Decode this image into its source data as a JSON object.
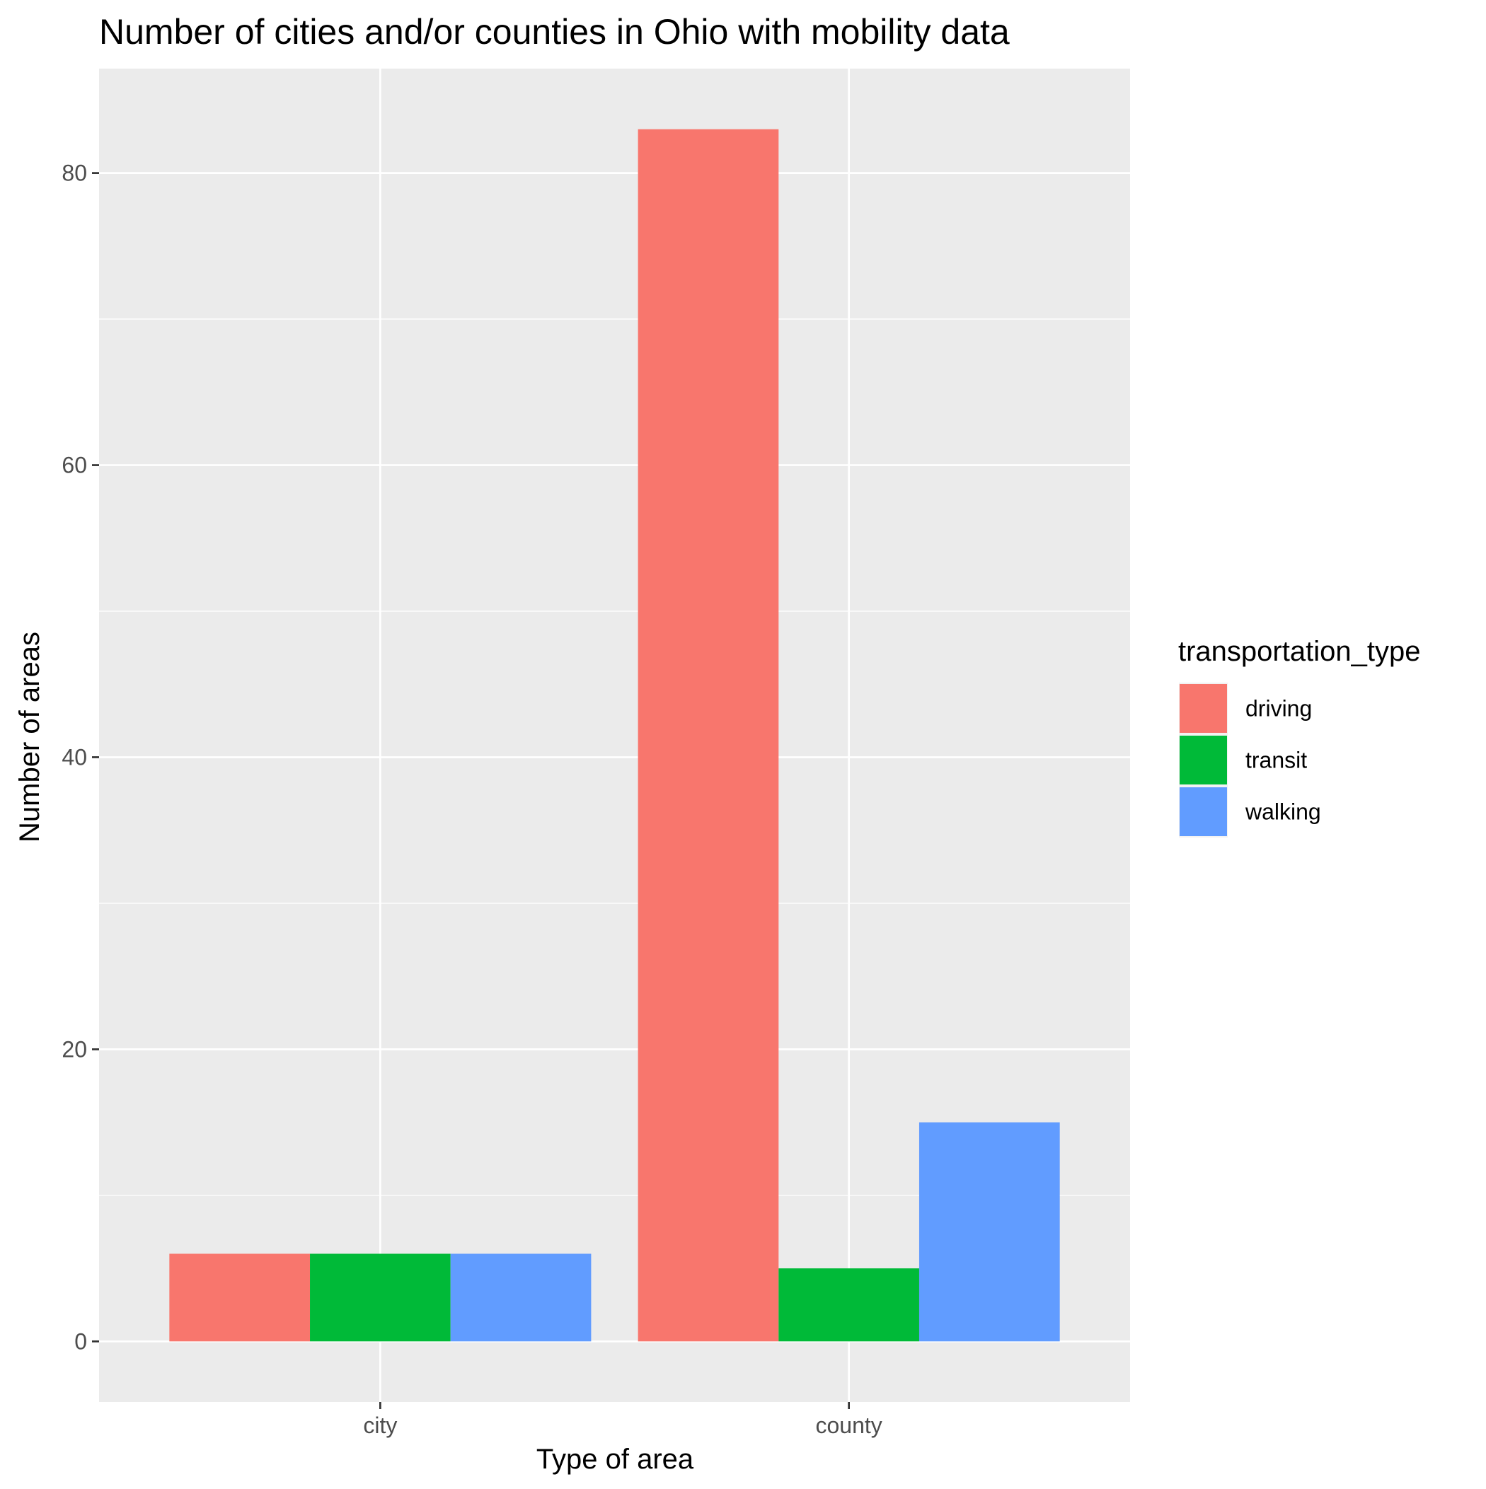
{
  "chart_data": {
    "type": "bar",
    "title": "Number of cities and/or counties in Ohio with mobility data",
    "xlabel": "Type of area",
    "ylabel": "Number of areas",
    "categories": [
      "city",
      "county"
    ],
    "series": [
      {
        "name": "driving",
        "values": [
          6,
          83
        ],
        "color": "#F8766D"
      },
      {
        "name": "transit",
        "values": [
          6,
          5
        ],
        "color": "#00BA38"
      },
      {
        "name": "walking",
        "values": [
          6,
          15
        ],
        "color": "#619CFF"
      }
    ],
    "ylim": [
      -4.15,
      87.15
    ],
    "yticks": [
      0,
      20,
      40,
      60,
      80
    ],
    "grid": true,
    "panel_background": "#EBEBEB",
    "grid_color": "#FFFFFF",
    "legend": {
      "title": "transportation_type",
      "placement": "right"
    }
  }
}
